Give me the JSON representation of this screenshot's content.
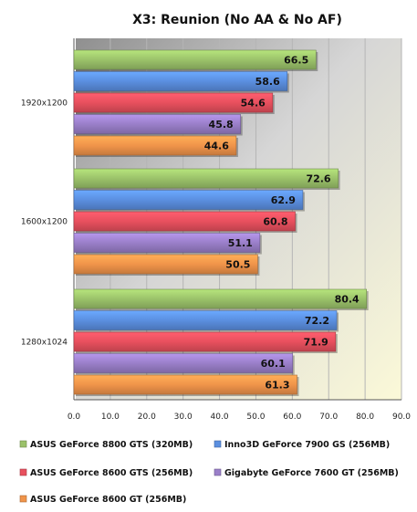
{
  "chart_data": {
    "type": "bar",
    "orientation": "horizontal",
    "title": "X3: Reunion (No AA & No AF)",
    "xlabel": "",
    "ylabel": "",
    "xlim": [
      0,
      90
    ],
    "x_ticks": [
      "0.0",
      "10.0",
      "20.0",
      "30.0",
      "40.0",
      "50.0",
      "60.0",
      "70.0",
      "80.0",
      "90.0"
    ],
    "grid": true,
    "legend_position": "bottom",
    "categories": [
      "1920x1200",
      "1600x1200",
      "1280x1024"
    ],
    "series": [
      {
        "name": "ASUS GeForce 8800 GTS (320MB)",
        "color": "#9bc26a",
        "values": [
          66.5,
          72.6,
          80.4
        ]
      },
      {
        "name": "Inno3D GeForce 7900 GS (256MB)",
        "color": "#5b8fe0",
        "values": [
          58.6,
          62.9,
          72.2
        ]
      },
      {
        "name": "ASUS GeForce 8600 GTS (256MB)",
        "color": "#e8505e",
        "values": [
          54.6,
          60.8,
          71.9
        ]
      },
      {
        "name": "Gigabyte GeForce 7600 GT (256MB)",
        "color": "#9a7fc9",
        "values": [
          45.8,
          51.1,
          60.1
        ]
      },
      {
        "name": "ASUS GeForce 8600 GT (256MB)",
        "color": "#f0944a",
        "values": [
          44.6,
          50.5,
          61.3
        ]
      }
    ]
  }
}
